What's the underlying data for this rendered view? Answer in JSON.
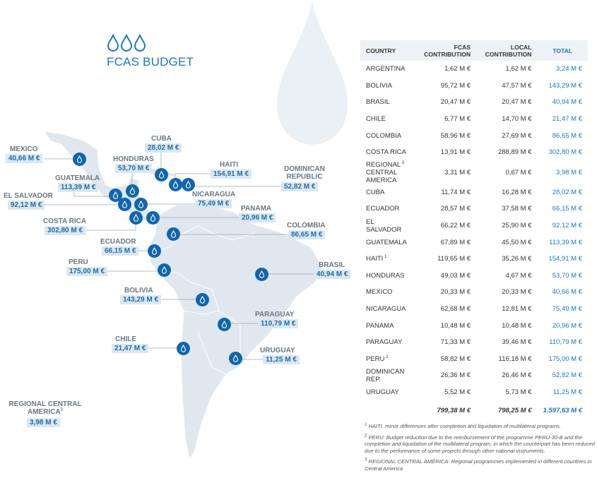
{
  "title": "FCAS BUDGET",
  "colors": {
    "accent": "#1a78bd",
    "pin": "#0f66ad",
    "map": "#e1e7ef",
    "label_box": "#dce6ef"
  },
  "icons": {
    "title": "water-drop-icon",
    "pin": "water-drop-icon"
  },
  "map_labels": [
    {
      "id": "mexico",
      "name": "MEXICO",
      "value": "40,66 M €"
    },
    {
      "id": "cuba",
      "name": "CUBA",
      "value": "28,02 M €"
    },
    {
      "id": "honduras",
      "name": "HONDURAS",
      "value": "53,70 M €"
    },
    {
      "id": "haiti",
      "name": "HAITI",
      "value": "154,91 M €"
    },
    {
      "id": "dominican",
      "name": "DOMINICAN REPUBLIC",
      "value": "52,82 M €"
    },
    {
      "id": "guatemala",
      "name": "GUATEMALA",
      "value": "113,39 M €"
    },
    {
      "id": "elsalvador",
      "name": "EL SALVADOR",
      "value": "92,12 M €"
    },
    {
      "id": "nicaragua",
      "name": "NICARAGUA",
      "value": "75,49 M €"
    },
    {
      "id": "panama",
      "name": "PANAMA",
      "value": "20,96 M €"
    },
    {
      "id": "costarica",
      "name": "COSTA RICA",
      "value": "302,80 M €"
    },
    {
      "id": "colombia",
      "name": "COLOMBIA",
      "value": "86,65 M €"
    },
    {
      "id": "ecuador",
      "name": "ECUADOR",
      "value": "66,15 M €"
    },
    {
      "id": "peru",
      "name": "PERU",
      "value": "175,00 M €"
    },
    {
      "id": "brasil",
      "name": "BRASIL",
      "value": "40,94 M €"
    },
    {
      "id": "bolivia",
      "name": "BOLIVIA",
      "value": "143,29 M €"
    },
    {
      "id": "paraguay",
      "name": "PARAGUAY",
      "value": "110,79 M €"
    },
    {
      "id": "chile",
      "name": "CHILE",
      "value": "21,47 M €"
    },
    {
      "id": "uruguay",
      "name": "URUGUAY",
      "value": "11,25 M €"
    },
    {
      "id": "regional",
      "name": "REGIONAL CENTRAL AMERICA",
      "sup": "3",
      "value": "3,98 M €"
    }
  ],
  "table": {
    "headers": {
      "country": "COUNTRY",
      "fcas": "FCAS CONTRIBUTION",
      "local": "LOCAL CONTRIBUTION",
      "total": "TOTAL"
    },
    "rows": [
      {
        "country": "ARGENTINA",
        "fcas": "1,62 M €",
        "local": "1,62 M €",
        "total": "3,24 M €"
      },
      {
        "country": "BOLIVIA",
        "fcas": "95,72 M €",
        "local": "47,57 M €",
        "total": "143,29 M €"
      },
      {
        "country": "BRASIL",
        "fcas": "20,47 M €",
        "local": "20,47 M €",
        "total": "40,94 M €"
      },
      {
        "country": "CHILE",
        "fcas": "6,77 M €",
        "local": "14,70 M €",
        "total": "21,47 M €"
      },
      {
        "country": "COLOMBIA",
        "fcas": "58,96 M €",
        "local": "27,69 M €",
        "total": "86,65 M €"
      },
      {
        "country": "COSTA RICA",
        "fcas": "13,91 M €",
        "local": "288,89 M €",
        "total": "302,80 M €"
      },
      {
        "country": "REGIONAL CENTRAL AMERICA",
        "sup": "3",
        "fcas": "3,31 M €",
        "local": "0,67 M €",
        "total": "3,98 M €"
      },
      {
        "country": "CUBA",
        "fcas": "11,74 M €",
        "local": "16,28 M €",
        "total": "28,02 M €"
      },
      {
        "country": "ECUADOR",
        "fcas": "28,57 M €",
        "local": "37,58 M €",
        "total": "66,15 M €"
      },
      {
        "country": "EL SALVADOR",
        "fcas": "66,22 M €",
        "local": "25,90 M €",
        "total": "92,12 M €"
      },
      {
        "country": "GUATEMALA",
        "fcas": "67,89 M €",
        "local": "45,50 M €",
        "total": "113,39 M €"
      },
      {
        "country": "HAITI",
        "sup": "1",
        "fcas": "119,65 M €",
        "local": "35,26 M €",
        "total": "154,91 M €"
      },
      {
        "country": "HONDURAS",
        "fcas": "49,03 M €",
        "local": "4,67 M €",
        "total": "53,70 M €"
      },
      {
        "country": "MEXICO",
        "fcas": "20,33 M €",
        "local": "20,33 M €",
        "total": "40,66 M €"
      },
      {
        "country": "NICARAGUA",
        "fcas": "62,68 M €",
        "local": "12,81 M €",
        "total": "75,49 M €"
      },
      {
        "country": "PANAMA",
        "fcas": "10,48 M €",
        "local": "10,48 M €",
        "total": "20,96 M €"
      },
      {
        "country": "PARAGUAY",
        "fcas": "71,33 M €",
        "local": "39,46 M €",
        "total": "110,79 M €"
      },
      {
        "country": "PERU",
        "sup": "2",
        "fcas": "58,82 M €",
        "local": "116,18 M €",
        "total": "175,00 M €"
      },
      {
        "country": "DOMINICAN REP.",
        "fcas": "26,36 M €",
        "local": "26,46 M €",
        "total": "52,82 M €"
      },
      {
        "country": "URUGUAY",
        "fcas": "5,52 M €",
        "local": "5,73 M €",
        "total": "11,25 M €"
      }
    ],
    "totals": {
      "fcas": "799,38  M €",
      "local": "798,25  M €",
      "total": "1.597,63  M €"
    }
  },
  "footnotes": [
    {
      "num": "1",
      "text": "HAITI. minor differences after completion and liquidation of multilateral programs."
    },
    {
      "num": "2",
      "text": "PERU: Budget reduction due to the reimbursement of the programme PERU-30-B and the completion and liquidation of the multilateral program, in which the counterpart has been reduced due to the performance of some projects through other national instruments."
    },
    {
      "num": "3",
      "text": "REGIONAL CENTRAL AMÉRICA: Regional programmes implemented in different countries in Central America"
    }
  ]
}
